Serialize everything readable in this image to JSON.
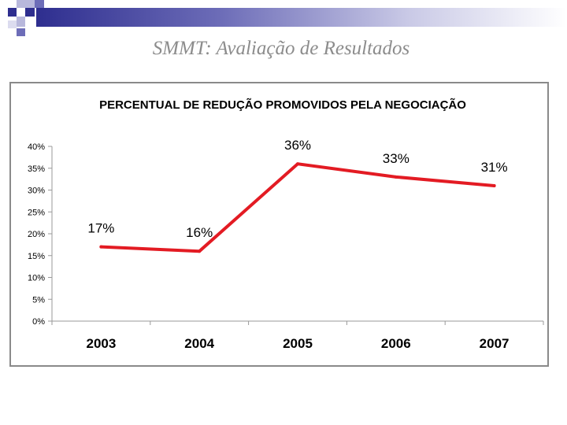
{
  "slide": {
    "title": "SMMT: Avaliação de Resultados"
  },
  "chart_data": {
    "type": "line",
    "title": "PERCENTUAL DE REDUÇÃO PROMOVIDOS PELA NEGOCIAÇÃO",
    "categories": [
      "2003",
      "2004",
      "2005",
      "2006",
      "2007"
    ],
    "values": [
      17,
      16,
      36,
      33,
      31
    ],
    "data_labels": [
      "17%",
      "16%",
      "36%",
      "33%",
      "31%"
    ],
    "yticks": [
      "0%",
      "5%",
      "10%",
      "15%",
      "20%",
      "25%",
      "30%",
      "35%",
      "40%"
    ],
    "ylim": [
      0,
      40
    ],
    "line_color": "#e31b23",
    "xlabel": "",
    "ylabel": "",
    "legend": "none",
    "grid": false
  }
}
